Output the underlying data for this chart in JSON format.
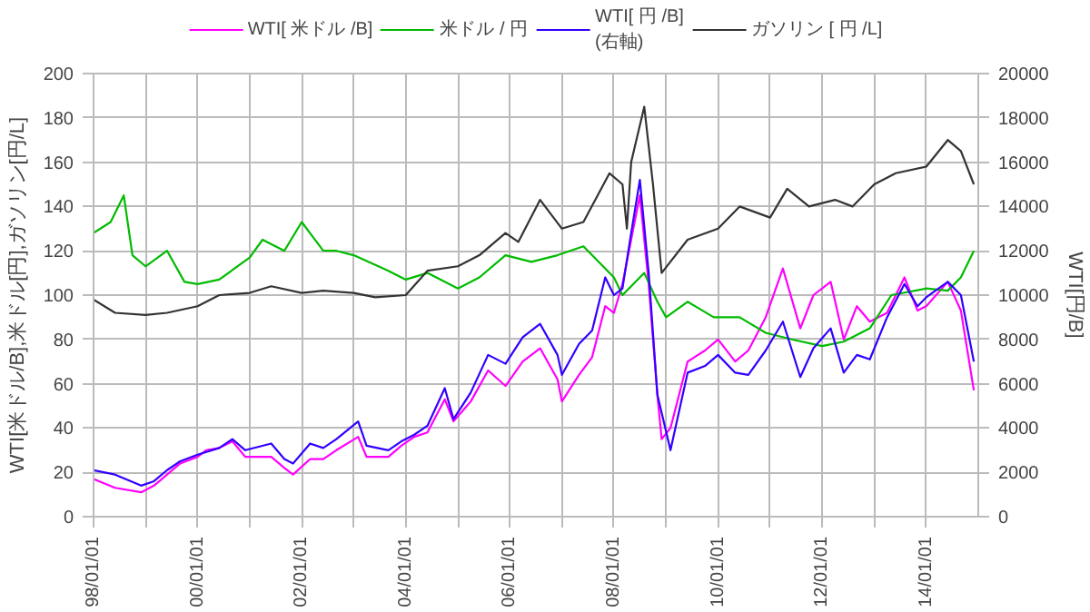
{
  "chart_data": {
    "type": "line",
    "ylabel": "WTI[米ドル/B],米ドル[円],ガソリン[円/L]",
    "y2label": "WTI[円/B]",
    "legend": "top",
    "grid": true,
    "xlim": [
      "1998-01-01",
      "2015-01-01"
    ],
    "xticks": [
      {
        "value": "1998-01-01",
        "label": "98/01/01"
      },
      {
        "value": "1999-01-01",
        "label": null
      },
      {
        "value": "2000-01-01",
        "label": "00/01/01"
      },
      {
        "value": "2001-01-01",
        "label": null
      },
      {
        "value": "2002-01-01",
        "label": "02/01/01"
      },
      {
        "value": "2003-01-01",
        "label": null
      },
      {
        "value": "2004-01-01",
        "label": "04/01/01"
      },
      {
        "value": "2005-01-01",
        "label": null
      },
      {
        "value": "2006-01-01",
        "label": "06/01/01"
      },
      {
        "value": "2007-01-01",
        "label": null
      },
      {
        "value": "2008-01-01",
        "label": "08/01/01"
      },
      {
        "value": "2009-01-01",
        "label": null
      },
      {
        "value": "2010-01-01",
        "label": "10/01/01"
      },
      {
        "value": "2011-01-01",
        "label": null
      },
      {
        "value": "2012-01-01",
        "label": "12/01/01"
      },
      {
        "value": "2013-01-01",
        "label": null
      },
      {
        "value": "2014-01-01",
        "label": "14/01/01"
      }
    ],
    "ylim": [
      0,
      200
    ],
    "yticks": [
      0,
      20,
      40,
      60,
      80,
      100,
      120,
      140,
      160,
      180,
      200
    ],
    "y2lim": [
      0,
      20000
    ],
    "y2ticks": [
      0,
      2000,
      4000,
      6000,
      8000,
      10000,
      12000,
      14000,
      16000,
      18000,
      20000
    ],
    "series": [
      {
        "name": "WTI[ 米ドル /B]",
        "color": "#ff00ff",
        "x": [
          "1998-01",
          "1998-06",
          "1998-12",
          "1999-03",
          "1999-06",
          "1999-09",
          "2000-01",
          "2000-03",
          "2000-06",
          "2000-09",
          "2000-12",
          "2001-03",
          "2001-06",
          "2001-09",
          "2001-11",
          "2002-03",
          "2002-06",
          "2002-09",
          "2003-02",
          "2003-04",
          "2003-09",
          "2003-12",
          "2004-03",
          "2004-06",
          "2004-10",
          "2004-12",
          "2005-04",
          "2005-08",
          "2005-12",
          "2006-04",
          "2006-08",
          "2006-12",
          "2007-01",
          "2007-05",
          "2007-08",
          "2007-11",
          "2008-01",
          "2008-03",
          "2008-05",
          "2008-07",
          "2008-09",
          "2008-11",
          "2008-12",
          "2009-02",
          "2009-06",
          "2009-10",
          "2010-01",
          "2010-05",
          "2010-08",
          "2010-12",
          "2011-04",
          "2011-08",
          "2011-11",
          "2012-03",
          "2012-06",
          "2012-09",
          "2012-12",
          "2013-04",
          "2013-08",
          "2013-11",
          "2014-01",
          "2014-06",
          "2014-09",
          "2014-12"
        ],
        "values": [
          17,
          13,
          11,
          14,
          19,
          24,
          27,
          30,
          31,
          34,
          27,
          27,
          27,
          22,
          19,
          26,
          26,
          30,
          36,
          27,
          27,
          32,
          36,
          38,
          53,
          43,
          52,
          66,
          59,
          70,
          76,
          62,
          52,
          64,
          72,
          95,
          92,
          105,
          125,
          145,
          105,
          55,
          35,
          40,
          70,
          75,
          80,
          70,
          75,
          90,
          112,
          85,
          100,
          106,
          80,
          95,
          88,
          92,
          108,
          93,
          95,
          106,
          93,
          57
        ]
      },
      {
        "name": "米ドル / 円",
        "color": "#00bb00",
        "x": [
          "1998-01",
          "1998-05",
          "1998-08",
          "1998-10",
          "1999-01",
          "1999-06",
          "1999-10",
          "2000-01",
          "2000-06",
          "2001-01",
          "2001-04",
          "2001-09",
          "2002-01",
          "2002-06",
          "2002-09",
          "2003-01",
          "2003-09",
          "2004-01",
          "2004-06",
          "2005-01",
          "2005-06",
          "2005-12",
          "2006-06",
          "2006-12",
          "2007-06",
          "2007-09",
          "2008-01",
          "2008-03",
          "2008-08",
          "2008-11",
          "2009-01",
          "2009-06",
          "2009-12",
          "2010-06",
          "2010-12",
          "2011-06",
          "2012-01",
          "2012-06",
          "2012-12",
          "2013-05",
          "2014-01",
          "2014-06",
          "2014-09",
          "2014-12"
        ],
        "values": [
          128,
          133,
          145,
          118,
          113,
          120,
          106,
          105,
          107,
          117,
          125,
          120,
          133,
          120,
          120,
          118,
          111,
          107,
          110,
          103,
          108,
          118,
          115,
          118,
          122,
          116,
          108,
          100,
          110,
          97,
          90,
          97,
          90,
          90,
          83,
          80,
          77,
          79,
          85,
          100,
          103,
          102,
          108,
          120
        ]
      },
      {
        "name": "WTI[ 円 /B]\n(右軸)",
        "color": "#3300ff",
        "axis": "y2",
        "x": [
          "1998-01",
          "1998-06",
          "1998-12",
          "1999-03",
          "1999-06",
          "1999-09",
          "2000-01",
          "2000-06",
          "2000-09",
          "2000-12",
          "2001-06",
          "2001-09",
          "2001-11",
          "2002-03",
          "2002-06",
          "2002-09",
          "2003-02",
          "2003-04",
          "2003-09",
          "2003-12",
          "2004-03",
          "2004-06",
          "2004-10",
          "2004-12",
          "2005-04",
          "2005-08",
          "2005-12",
          "2006-04",
          "2006-08",
          "2006-12",
          "2007-01",
          "2007-05",
          "2007-08",
          "2007-11",
          "2008-01",
          "2008-03",
          "2008-05",
          "2008-07",
          "2008-09",
          "2008-11",
          "2009-02",
          "2009-06",
          "2009-10",
          "2010-01",
          "2010-05",
          "2010-08",
          "2010-12",
          "2011-04",
          "2011-08",
          "2011-11",
          "2012-03",
          "2012-06",
          "2012-09",
          "2012-12",
          "2013-04",
          "2013-08",
          "2013-11",
          "2014-01",
          "2014-06",
          "2014-09",
          "2014-12"
        ],
        "values": [
          2100,
          1900,
          1400,
          1600,
          2100,
          2500,
          2800,
          3100,
          3500,
          3000,
          3300,
          2600,
          2400,
          3300,
          3100,
          3500,
          4300,
          3200,
          3000,
          3400,
          3700,
          4100,
          5800,
          4400,
          5600,
          7300,
          6900,
          8100,
          8700,
          7300,
          6400,
          7800,
          8400,
          10800,
          10000,
          10300,
          12800,
          15200,
          11000,
          5500,
          3000,
          6500,
          6800,
          7300,
          6500,
          6400,
          7500,
          8800,
          6300,
          7600,
          8500,
          6500,
          7300,
          7100,
          9000,
          10500,
          9500,
          9900,
          10600,
          10000,
          7000
        ]
      },
      {
        "name": "ガソリン [ 円 /L]",
        "color": "#333333",
        "x": [
          "1998-01",
          "1998-06",
          "1999-01",
          "1999-06",
          "2000-01",
          "2000-06",
          "2001-01",
          "2001-06",
          "2002-01",
          "2002-06",
          "2003-01",
          "2003-06",
          "2004-01",
          "2004-06",
          "2005-01",
          "2005-06",
          "2005-12",
          "2006-03",
          "2006-08",
          "2007-01",
          "2007-06",
          "2007-12",
          "2008-03",
          "2008-04",
          "2008-05",
          "2008-08",
          "2008-10",
          "2008-12",
          "2009-06",
          "2010-01",
          "2010-06",
          "2011-01",
          "2011-05",
          "2011-10",
          "2012-04",
          "2012-08",
          "2013-01",
          "2013-06",
          "2014-01",
          "2014-06",
          "2014-09",
          "2014-12"
        ],
        "values": [
          98,
          92,
          91,
          92,
          95,
          100,
          101,
          104,
          101,
          102,
          101,
          99,
          100,
          111,
          113,
          118,
          128,
          124,
          143,
          130,
          133,
          155,
          150,
          130,
          160,
          185,
          150,
          110,
          125,
          130,
          140,
          135,
          148,
          140,
          143,
          140,
          150,
          155,
          158,
          170,
          165,
          150
        ]
      }
    ]
  }
}
